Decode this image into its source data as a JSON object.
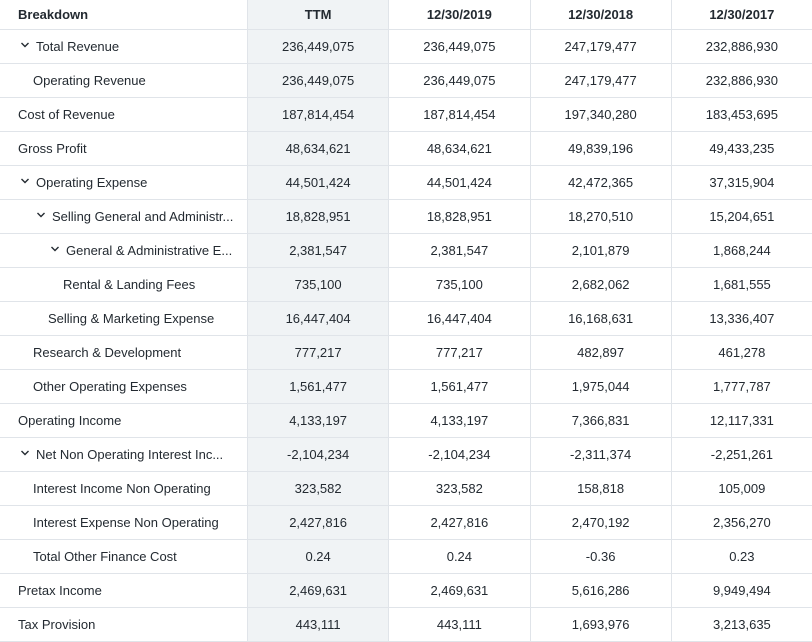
{
  "header": {
    "breakdown": "Breakdown",
    "columns": [
      "TTM",
      "12/30/2019",
      "12/30/2018",
      "12/30/2017"
    ]
  },
  "rows": [
    {
      "label": "Total Revenue",
      "values": [
        "236,449,075",
        "236,449,075",
        "247,179,477",
        "232,886,930"
      ]
    },
    {
      "label": "Operating Revenue",
      "values": [
        "236,449,075",
        "236,449,075",
        "247,179,477",
        "232,886,930"
      ]
    },
    {
      "label": "Cost of Revenue",
      "values": [
        "187,814,454",
        "187,814,454",
        "197,340,280",
        "183,453,695"
      ]
    },
    {
      "label": "Gross Profit",
      "values": [
        "48,634,621",
        "48,634,621",
        "49,839,196",
        "49,433,235"
      ]
    },
    {
      "label": "Operating Expense",
      "values": [
        "44,501,424",
        "44,501,424",
        "42,472,365",
        "37,315,904"
      ]
    },
    {
      "label": "Selling General and Administr...",
      "values": [
        "18,828,951",
        "18,828,951",
        "18,270,510",
        "15,204,651"
      ]
    },
    {
      "label": "General & Administrative E...",
      "values": [
        "2,381,547",
        "2,381,547",
        "2,101,879",
        "1,868,244"
      ]
    },
    {
      "label": "Rental & Landing Fees",
      "values": [
        "735,100",
        "735,100",
        "2,682,062",
        "1,681,555"
      ]
    },
    {
      "label": "Selling & Marketing Expense",
      "values": [
        "16,447,404",
        "16,447,404",
        "16,168,631",
        "13,336,407"
      ]
    },
    {
      "label": "Research & Development",
      "values": [
        "777,217",
        "777,217",
        "482,897",
        "461,278"
      ]
    },
    {
      "label": "Other Operating Expenses",
      "values": [
        "1,561,477",
        "1,561,477",
        "1,975,044",
        "1,777,787"
      ]
    },
    {
      "label": "Operating Income",
      "values": [
        "4,133,197",
        "4,133,197",
        "7,366,831",
        "12,117,331"
      ]
    },
    {
      "label": "Net Non Operating Interest Inc...",
      "values": [
        "-2,104,234",
        "-2,104,234",
        "-2,311,374",
        "-2,251,261"
      ]
    },
    {
      "label": "Interest Income Non Operating",
      "values": [
        "323,582",
        "323,582",
        "158,818",
        "105,009"
      ]
    },
    {
      "label": "Interest Expense Non Operating",
      "values": [
        "2,427,816",
        "2,427,816",
        "2,470,192",
        "2,356,270"
      ]
    },
    {
      "label": "Total Other Finance Cost",
      "values": [
        "0.24",
        "0.24",
        "-0.36",
        "0.23"
      ]
    },
    {
      "label": "Pretax Income",
      "values": [
        "2,469,631",
        "2,469,631",
        "5,616,286",
        "9,949,494"
      ]
    },
    {
      "label": "Tax Provision",
      "values": [
        "443,111",
        "443,111",
        "1,693,976",
        "3,213,635"
      ]
    }
  ],
  "icons": {
    "expand": "chevron-down-icon"
  },
  "colors": {
    "ttm_column_bg": "#f0f3f5",
    "border": "#e0e4e9",
    "text": "#232a31"
  }
}
